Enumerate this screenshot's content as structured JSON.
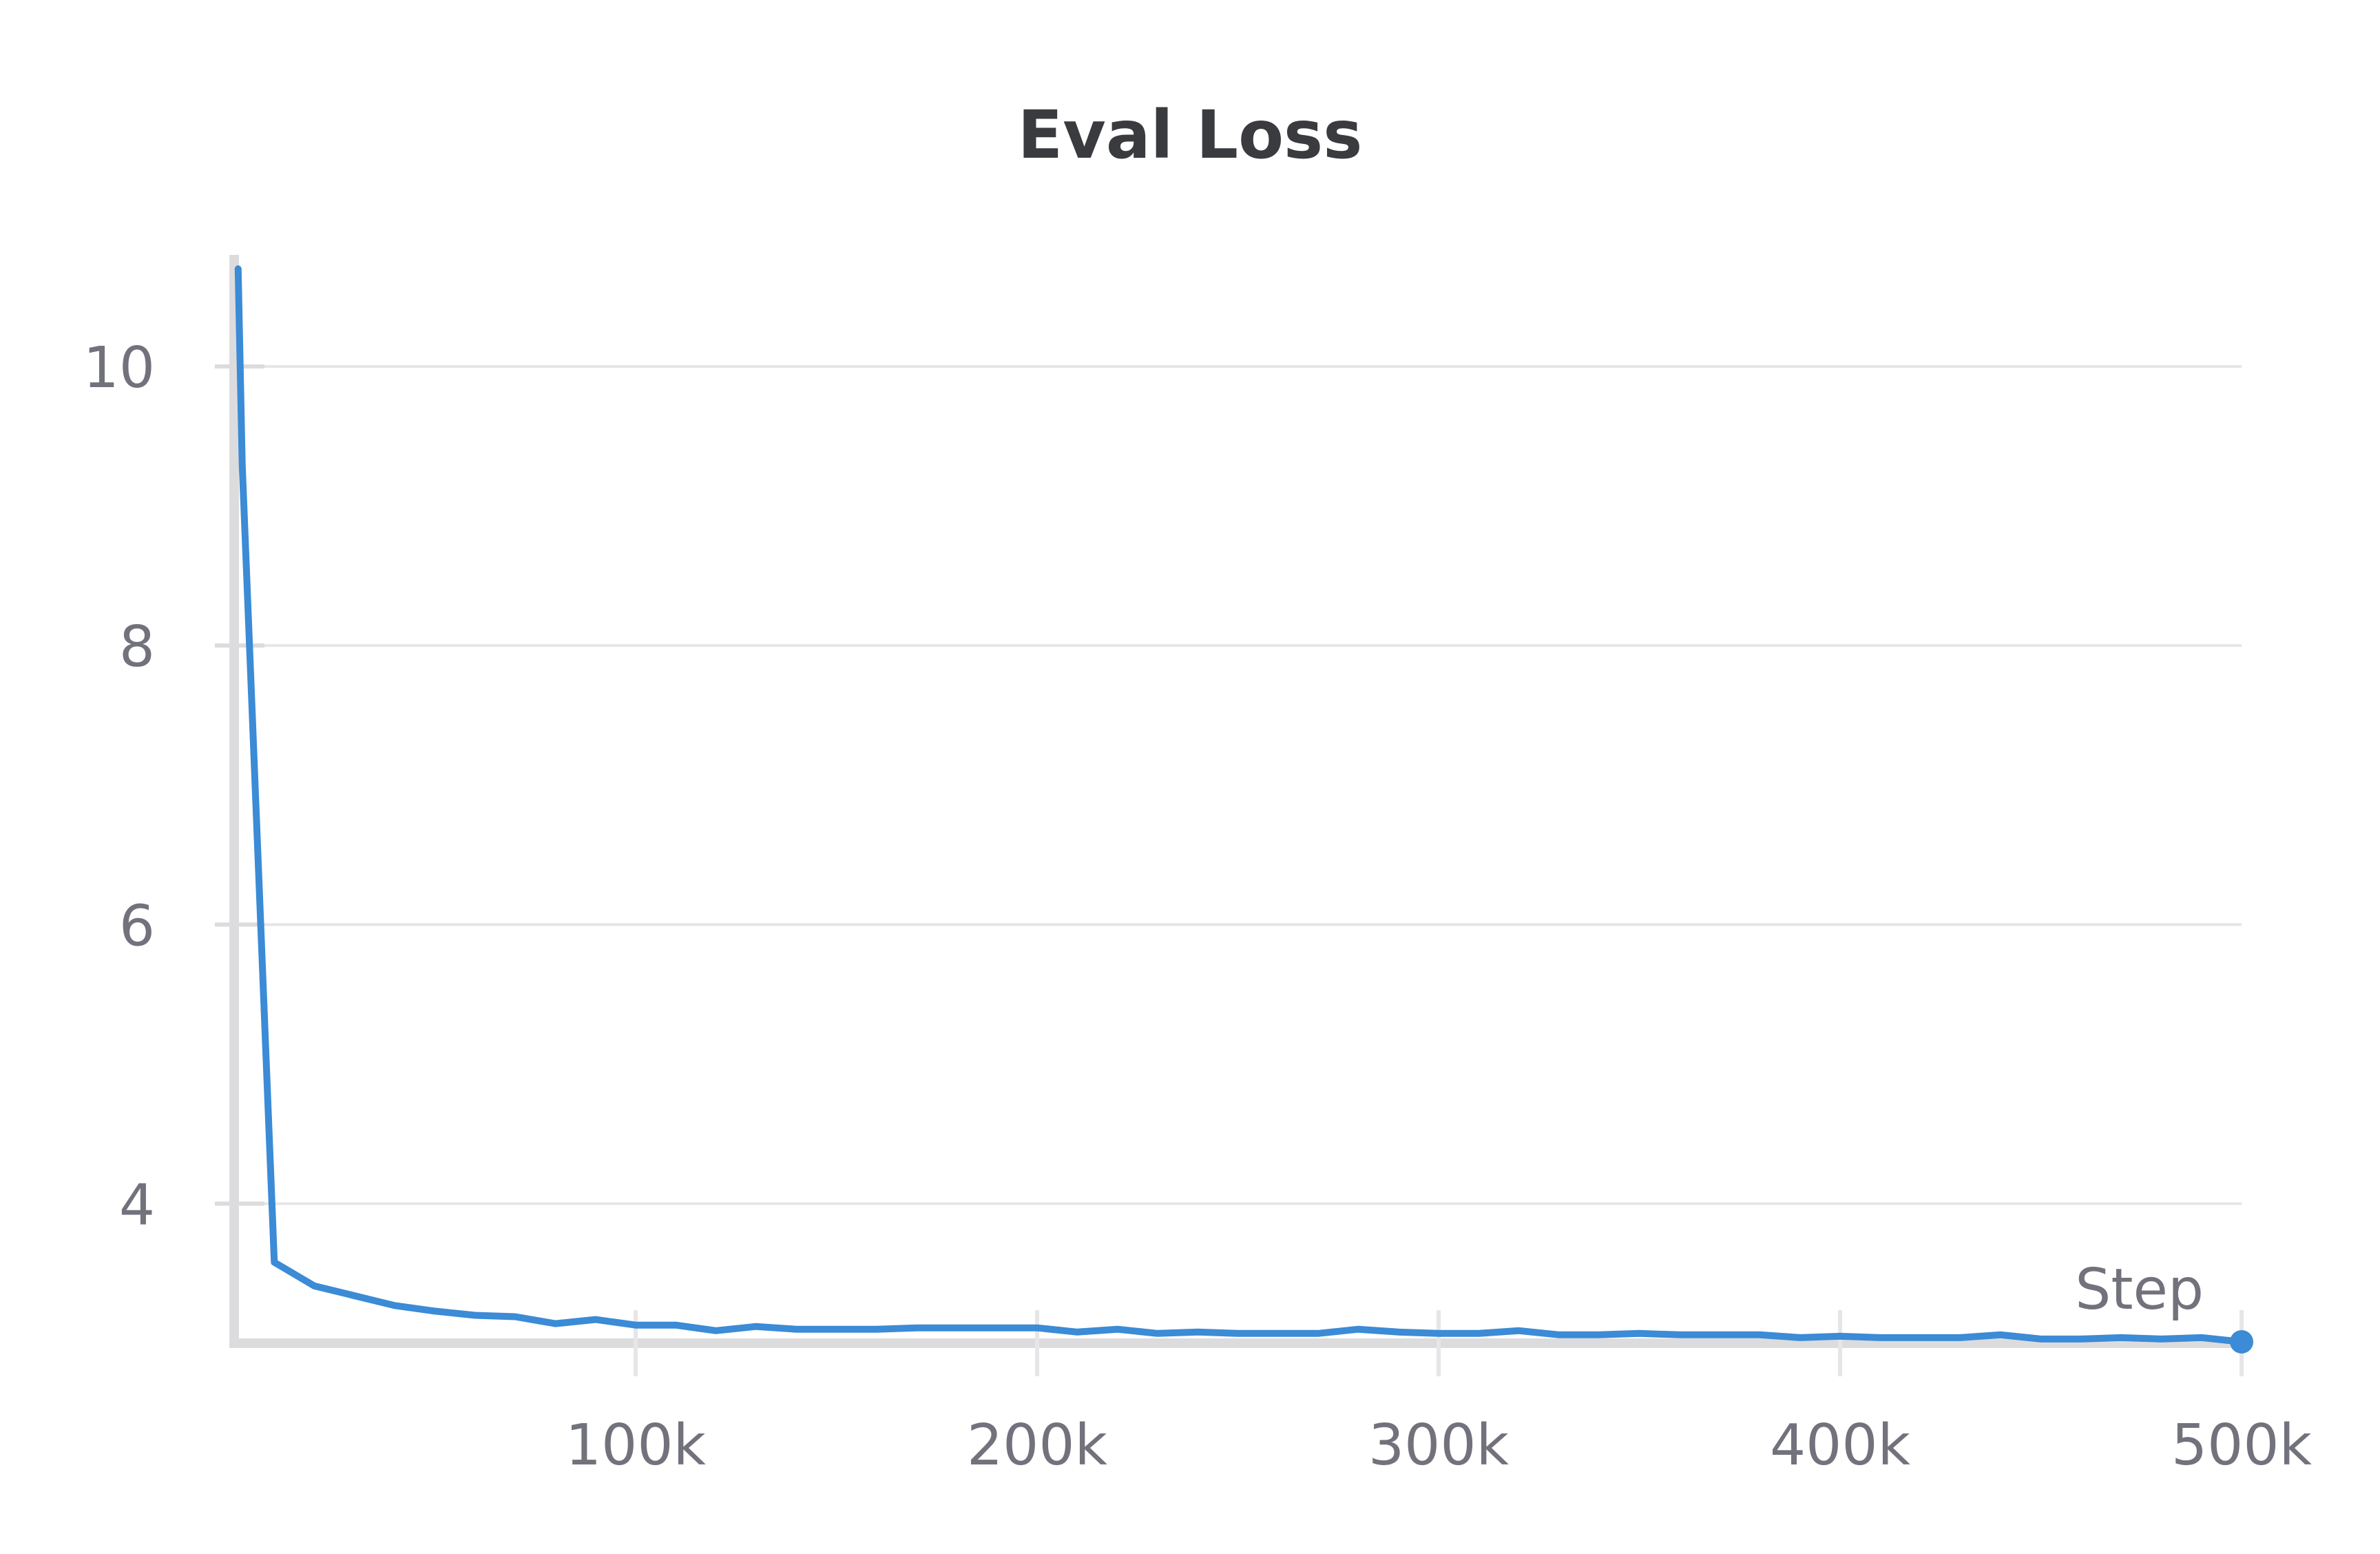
{
  "chart_data": {
    "type": "line",
    "title": "Eval Loss",
    "xlabel": "Step",
    "ylabel": "",
    "xlim": [
      0,
      500000
    ],
    "ylim": [
      3.0,
      10.8
    ],
    "grid": true,
    "x_ticks": [
      {
        "value": 100000,
        "label": "100k"
      },
      {
        "value": 200000,
        "label": "200k"
      },
      {
        "value": 300000,
        "label": "300k"
      },
      {
        "value": 400000,
        "label": "400k"
      },
      {
        "value": 500000,
        "label": "500k"
      }
    ],
    "y_ticks": [
      {
        "value": 4,
        "label": "4"
      },
      {
        "value": 6,
        "label": "6"
      },
      {
        "value": 8,
        "label": "8"
      },
      {
        "value": 10,
        "label": "10"
      }
    ],
    "colors": {
      "line": "#3b8bd6",
      "grid": "#e6e6e9",
      "axis": "#dcdcde",
      "text": "#72727d",
      "title": "#3a3b3f"
    },
    "series": [
      {
        "x": [
          1000,
          2000,
          10000,
          20000,
          30000,
          40000,
          50000,
          60000,
          70000,
          80000,
          90000,
          100000,
          110000,
          120000,
          130000,
          140000,
          150000,
          160000,
          170000,
          180000,
          190000,
          200000,
          210000,
          220000,
          230000,
          240000,
          250000,
          260000,
          270000,
          280000,
          290000,
          300000,
          310000,
          320000,
          330000,
          340000,
          350000,
          360000,
          370000,
          380000,
          390000,
          400000,
          410000,
          420000,
          430000,
          440000,
          450000,
          460000,
          470000,
          480000,
          490000,
          500000
        ],
        "values": [
          10.7,
          9.3,
          3.58,
          3.41,
          3.34,
          3.27,
          3.23,
          3.2,
          3.19,
          3.14,
          3.17,
          3.13,
          3.13,
          3.09,
          3.12,
          3.1,
          3.1,
          3.1,
          3.11,
          3.11,
          3.11,
          3.11,
          3.08,
          3.1,
          3.07,
          3.08,
          3.07,
          3.07,
          3.07,
          3.1,
          3.08,
          3.07,
          3.07,
          3.09,
          3.06,
          3.06,
          3.07,
          3.06,
          3.06,
          3.06,
          3.04,
          3.05,
          3.04,
          3.04,
          3.04,
          3.06,
          3.03,
          3.03,
          3.04,
          3.03,
          3.04,
          3.01
        ]
      }
    ]
  }
}
